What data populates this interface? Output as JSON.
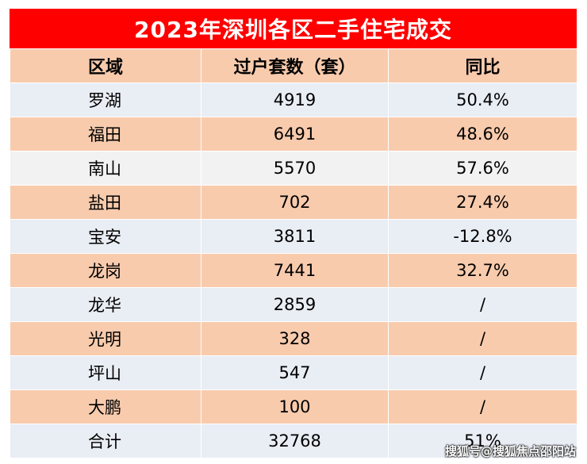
{
  "title": "2023年深圳各区二手住宅成交",
  "headers": {
    "district": "区域",
    "transfers": "过户套数（套）",
    "yoy": "同比"
  },
  "rows": [
    {
      "district": "罗湖",
      "transfers": "4919",
      "yoy": "50.4%"
    },
    {
      "district": "福田",
      "transfers": "6491",
      "yoy": "48.6%"
    },
    {
      "district": "南山",
      "transfers": "5570",
      "yoy": "57.6%"
    },
    {
      "district": "盐田",
      "transfers": "702",
      "yoy": "27.4%"
    },
    {
      "district": "宝安",
      "transfers": "3811",
      "yoy": "-12.8%"
    },
    {
      "district": "龙岗",
      "transfers": "7441",
      "yoy": "32.7%"
    },
    {
      "district": "龙华",
      "transfers": "2859",
      "yoy": "/"
    },
    {
      "district": "光明",
      "transfers": "328",
      "yoy": "/"
    },
    {
      "district": "坪山",
      "transfers": "547",
      "yoy": "/"
    },
    {
      "district": "大鹏",
      "transfers": "100",
      "yoy": "/"
    },
    {
      "district": "合计",
      "transfers": "32768",
      "yoy": "51%"
    }
  ],
  "watermark": "搜狐号@搜狐焦点邵阳站",
  "colors": {
    "title_background": "#ff0000",
    "header_background": "#f8cbad",
    "band_light": "#e9edf4",
    "band_peach": "#f8cbad"
  }
}
